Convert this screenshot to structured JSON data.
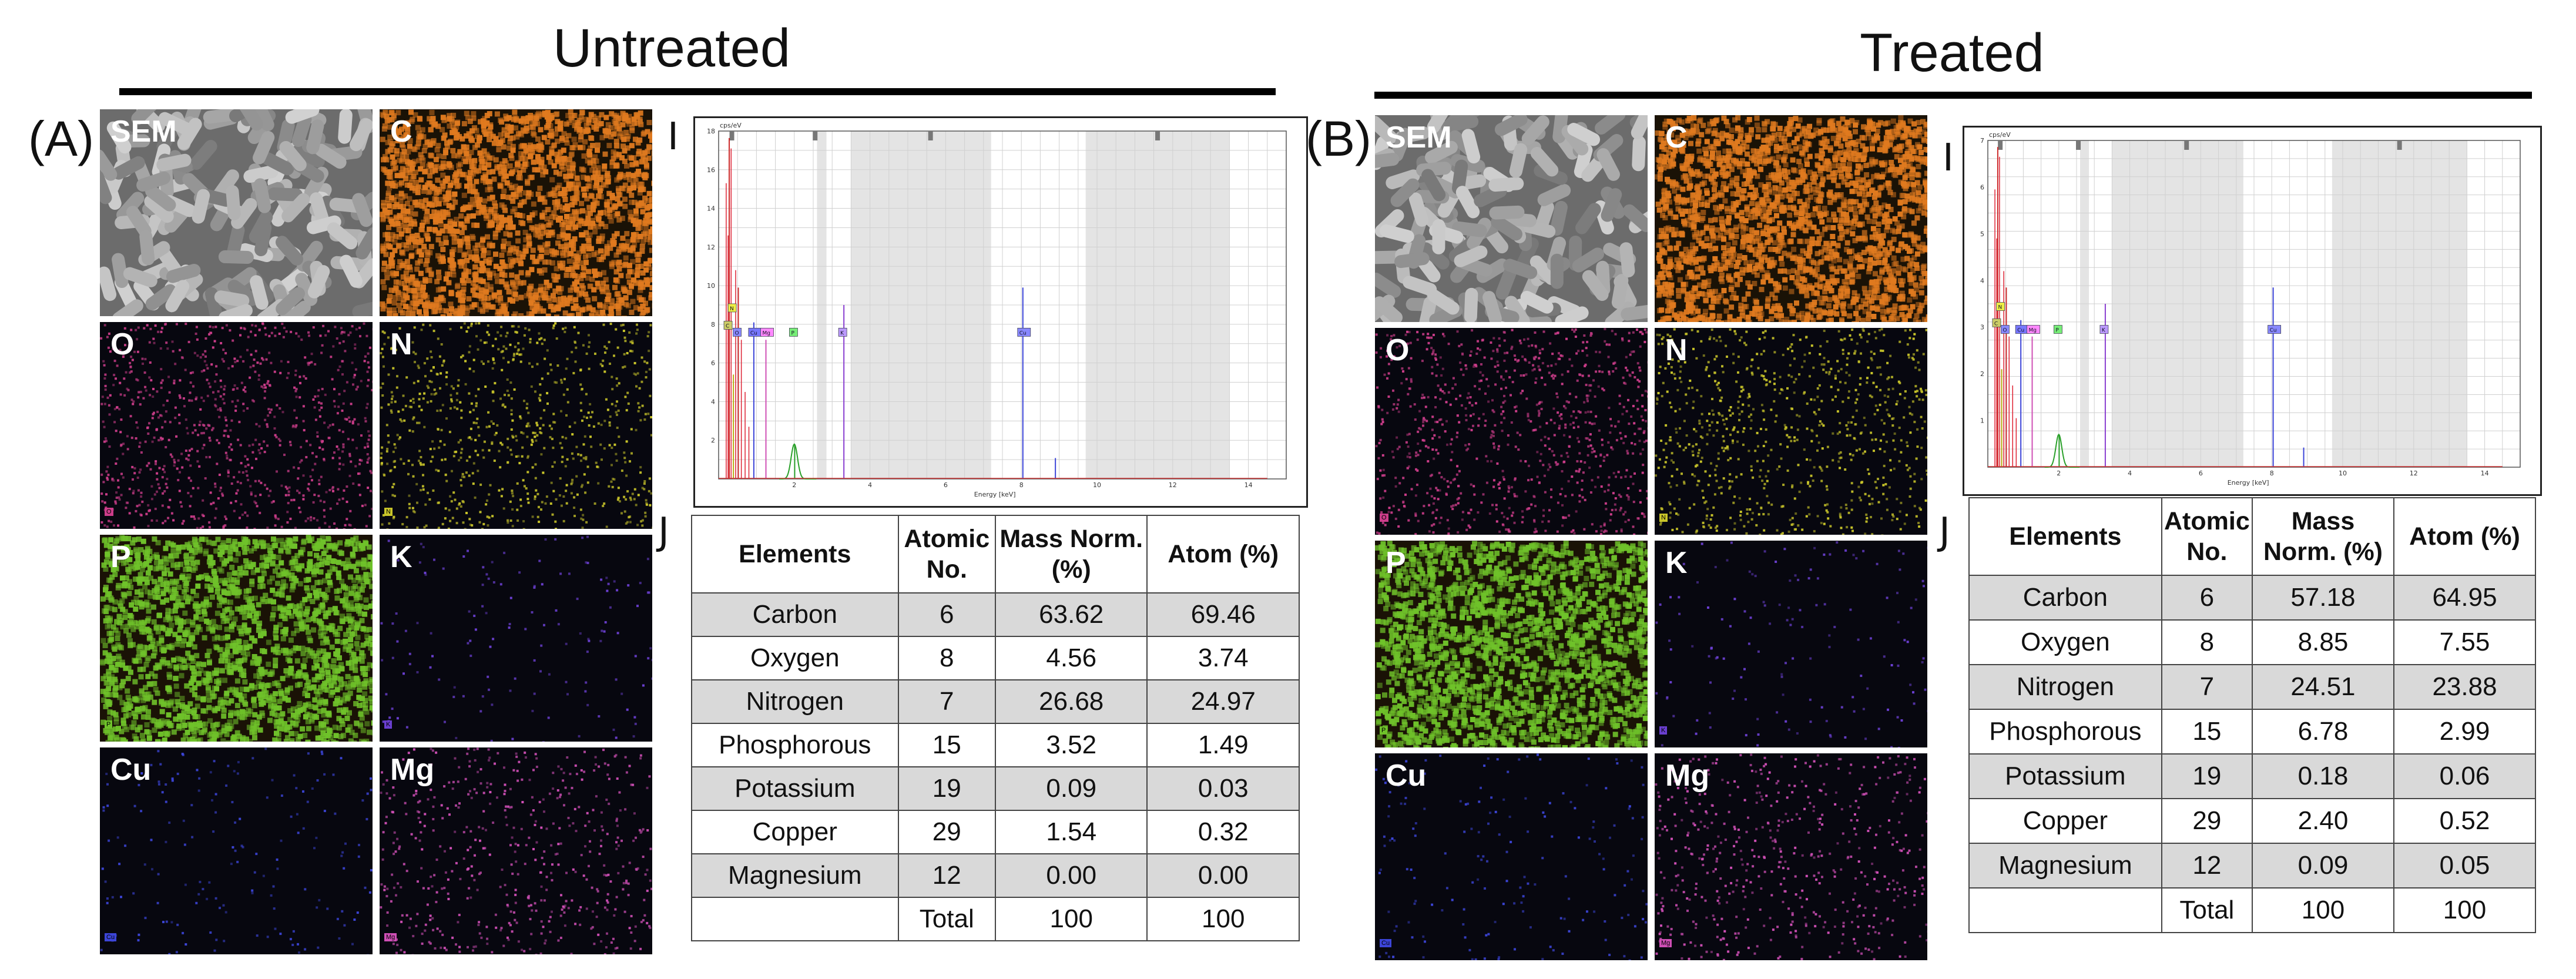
{
  "headings": {
    "untreated": "Untreated",
    "treated": "Treated"
  },
  "panel_letters": {
    "a": "(A)",
    "b": "(B)",
    "spectrum": "I",
    "table": "J"
  },
  "map_labels": [
    "SEM",
    "C",
    "O",
    "N",
    "P",
    "K",
    "Cu",
    "Mg"
  ],
  "map_colors": {
    "SEM": "#8a8a8a",
    "C": "#e07a1f",
    "O": "#cc3d8a",
    "N": "#c9c52a",
    "P": "#6fc22a",
    "K": "#6a3fd0",
    "Cu": "#3c45d8",
    "Mg": "#cf4fb6"
  },
  "spectrum": {
    "y_unit": "cps/eV",
    "x_label": "Energy [keV]",
    "x_ticks": [
      "2",
      "4",
      "6",
      "8",
      "10",
      "12",
      "14"
    ],
    "untreated_y_ticks": [
      "18",
      "16",
      "14",
      "12",
      "10",
      "8",
      "6",
      "4",
      "2"
    ],
    "treated_y_ticks": [
      "7",
      "6",
      "5",
      "4",
      "3",
      "2",
      "1"
    ],
    "peak_tags": [
      "C",
      "N",
      "O",
      "Cu",
      "Mg",
      "P",
      "K",
      "Cu"
    ]
  },
  "table": {
    "headers": [
      "Elements",
      "Atomic No.",
      "Mass Norm. (%)",
      "Atom (%)"
    ],
    "untreated_rows": [
      [
        "Carbon",
        "6",
        "63.62",
        "69.46"
      ],
      [
        "Oxygen",
        "8",
        "4.56",
        "3.74"
      ],
      [
        "Nitrogen",
        "7",
        "26.68",
        "24.97"
      ],
      [
        "Phosphorous",
        "15",
        "3.52",
        "1.49"
      ],
      [
        "Potassium",
        "19",
        "0.09",
        "0.03"
      ],
      [
        "Copper",
        "29",
        "1.54",
        "0.32"
      ],
      [
        "Magnesium",
        "12",
        "0.00",
        "0.00"
      ],
      [
        "",
        "Total",
        "100",
        "100"
      ]
    ],
    "treated_rows": [
      [
        "Carbon",
        "6",
        "57.18",
        "64.95"
      ],
      [
        "Oxygen",
        "8",
        "8.85",
        "7.55"
      ],
      [
        "Nitrogen",
        "7",
        "24.51",
        "23.88"
      ],
      [
        "Phosphorous",
        "15",
        "6.78",
        "2.99"
      ],
      [
        "Potassium",
        "19",
        "0.18",
        "0.06"
      ],
      [
        "Copper",
        "29",
        "2.40",
        "0.52"
      ],
      [
        "Magnesium",
        "12",
        "0.09",
        "0.05"
      ],
      [
        "",
        "Total",
        "100",
        "100"
      ]
    ]
  }
}
